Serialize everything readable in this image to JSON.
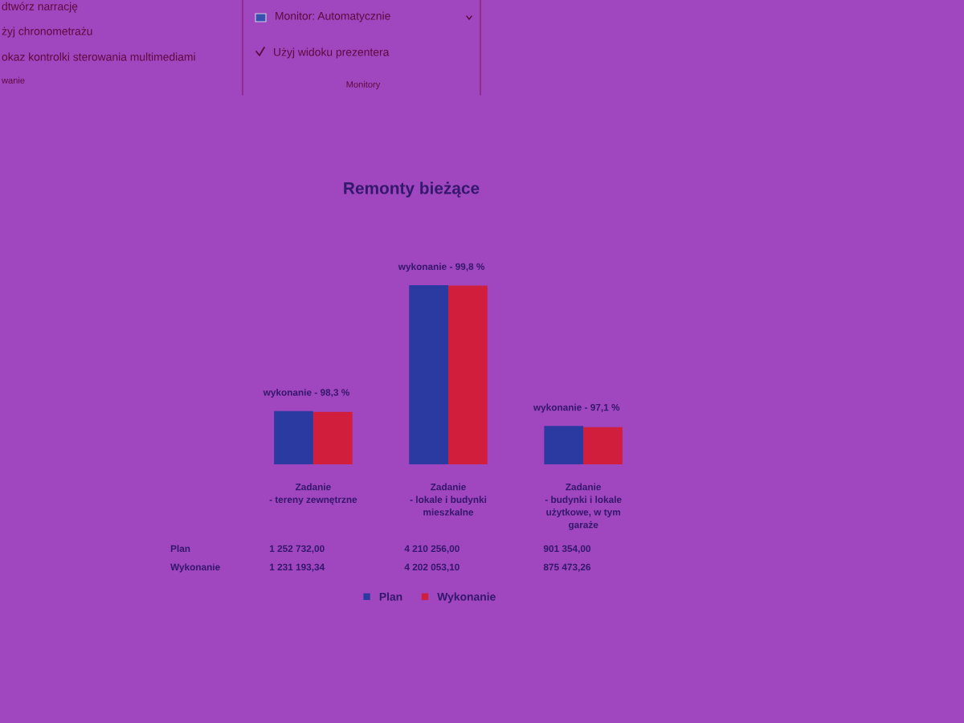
{
  "chart_data": {
    "type": "bar",
    "title": "Remonty bieżące",
    "categories": [
      "Zadanie\n- tereny zewnętrzne",
      "Zadanie\n- lokale i budynki\nmieszkalne",
      "Zadanie\n- budynki i lokale\nużytkowe, w tym\ngaraże"
    ],
    "series": [
      {
        "name": "Plan",
        "color": "#2a3aa0",
        "values": [
          1252732.0,
          4210256.0,
          901354.0
        ],
        "value_labels": [
          "1 252 732,00",
          "4 210 256,00",
          "901 354,00"
        ]
      },
      {
        "name": "Wykonanie",
        "color": "#d01e3c",
        "values": [
          1231193.34,
          4202053.1,
          875473.26
        ],
        "value_labels": [
          "1 231 193,34",
          "4 202 053,10",
          "875 473,26"
        ]
      }
    ],
    "annotations": [
      "dtwórz narrację",
      "żyj chronometrażu",
      "okaz kontrolki sterowania multimediami",
      "wanie",
      "Monitor: Automatycznie",
      "Użyj widoku prezentera",
      "Monitory",
      {
        "text": "wykonanie - 98,3 %",
        "x": "Zadanie\n- tereny zewnętrzne",
        "y": 1252732.0
      },
      {
        "text": "wykonanie - 99,8 %",
        "x": "Zadanie\n- lokale i budynki\nmieszkalne",
        "y": 4210256.0
      },
      {
        "text": "wykonanie - 97,1 %",
        "x": "Zadanie\n- budynki i lokale\nużytkowe, w tym\ngaraże",
        "y": 901354.0
      }
    ],
    "legend": "bottom",
    "tick_labels": "x"
  }
}
